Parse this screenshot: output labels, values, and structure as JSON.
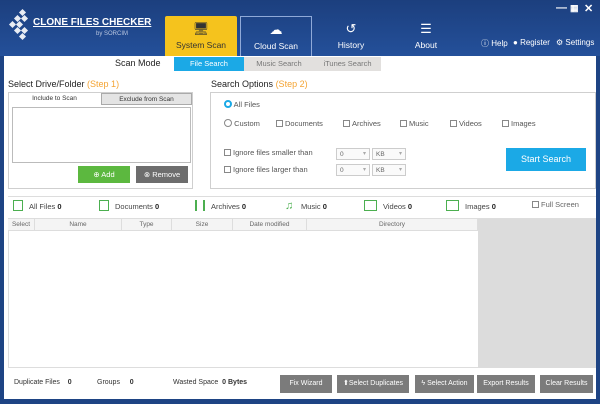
{
  "app": {
    "name": "CLONE FILES CHECKER",
    "by": "by SORCIM"
  },
  "nav": [
    {
      "label": "System Scan",
      "icon": "monitor-search-icon",
      "active": true
    },
    {
      "label": "Cloud Scan",
      "icon": "cloud-search-icon"
    },
    {
      "label": "History",
      "icon": "history-icon"
    },
    {
      "label": "About",
      "icon": "about-icon"
    }
  ],
  "top_links": {
    "help": "Help",
    "register": "Register",
    "settings": "Settings"
  },
  "scan_mode": {
    "label": "Scan Mode",
    "modes": [
      "File Search",
      "Music Search",
      "iTunes Search"
    ],
    "selected": "File Search"
  },
  "drive": {
    "title": "Select Drive/Folder",
    "step": "(Step 1)",
    "tabs": [
      "Include to Scan",
      "Exclude from Scan"
    ],
    "add": "Add",
    "remove": "Remove"
  },
  "options": {
    "title": "Search Options",
    "step": "(Step 2)",
    "all_files": "All Files",
    "custom": "Custom",
    "types": [
      "Documents",
      "Archives",
      "Music",
      "Videos",
      "Images"
    ],
    "ignore_smaller": "Ignore files smaller than",
    "ignore_larger": "Ignore files larger than",
    "size_value": "0",
    "size_unit": "KB",
    "start": "Start Search"
  },
  "categories": [
    {
      "label": "All Files",
      "count": "0"
    },
    {
      "label": "Documents",
      "count": "0"
    },
    {
      "label": "Archives",
      "count": "0"
    },
    {
      "label": "Music",
      "count": "0"
    },
    {
      "label": "Videos",
      "count": "0"
    },
    {
      "label": "Images",
      "count": "0"
    }
  ],
  "full_screen": "Full Screen",
  "columns": [
    "Select",
    "Name",
    "Type",
    "Size",
    "Date modified",
    "Directory"
  ],
  "footer": {
    "dup_label": "Duplicate Files",
    "dup": "0",
    "groups_label": "Groups",
    "groups": "0",
    "wasted_label": "Wasted Space",
    "wasted": "0 Bytes",
    "buttons": [
      "Fix Wizard",
      "Select Duplicates",
      "Select Action",
      "Export Results",
      "Clear Results"
    ]
  },
  "colors": {
    "header": "#1e4484",
    "active_tab": "#f5c31d",
    "accent": "#1ba9e6",
    "add": "#5cb83f",
    "remove": "#6d6d6d"
  }
}
